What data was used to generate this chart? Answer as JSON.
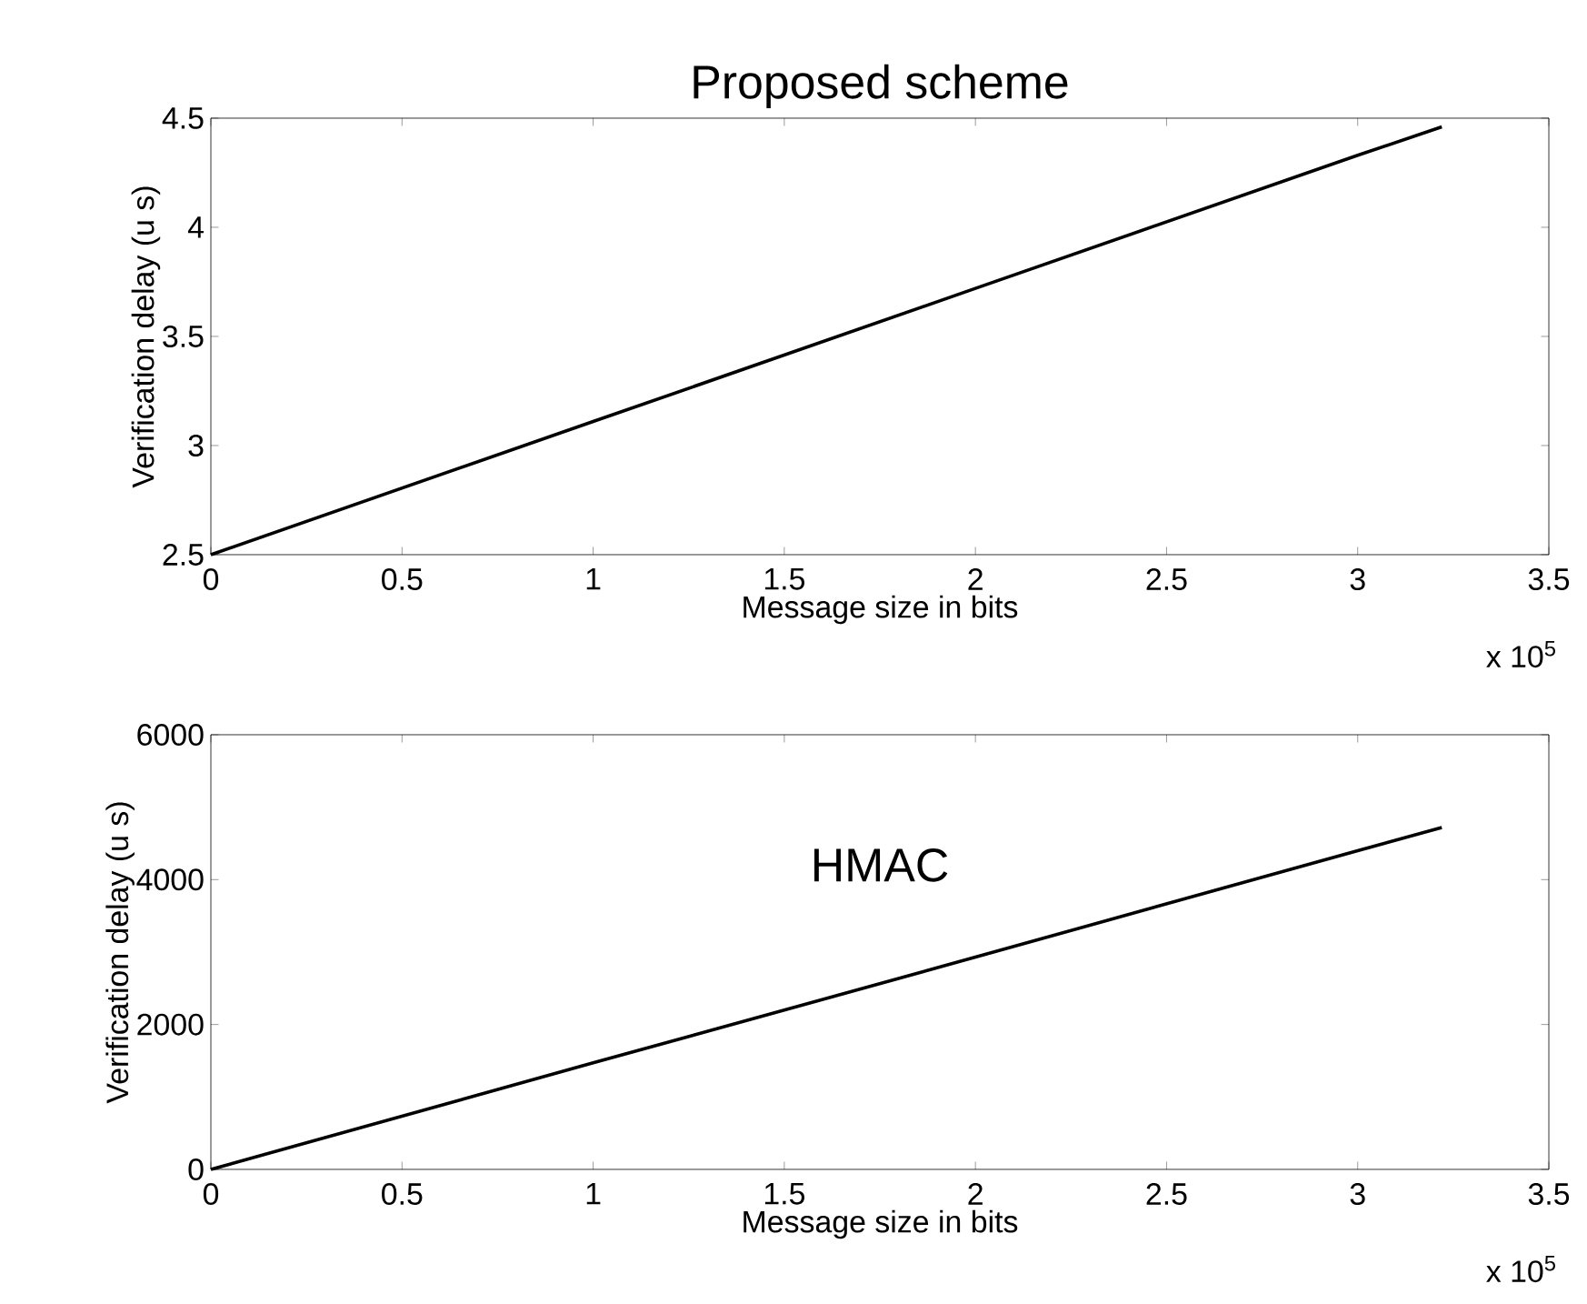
{
  "chart_data": [
    {
      "type": "line",
      "title": "Proposed scheme",
      "xlabel": "Message size in bits",
      "ylabel": "Verification delay (u s)",
      "x": [
        0,
        1,
        2,
        3,
        3.22
      ],
      "values": [
        2.5,
        3.11,
        3.72,
        4.33,
        4.46
      ],
      "color": "#000000",
      "xlim": [
        0,
        3.5
      ],
      "ylim": [
        2.5,
        4.5
      ],
      "xticks": [
        0,
        0.5,
        1,
        1.5,
        2,
        2.5,
        3,
        3.5
      ],
      "yticks": [
        2.5,
        3,
        3.5,
        4,
        4.5
      ],
      "annotations": [
        "x 10$^{5}$"
      ]
    },
    {
      "type": "line",
      "title": "HMAC",
      "xlabel": "Message size in bits",
      "ylabel": "Verification delay (u s)",
      "x": [
        0,
        1,
        2,
        3,
        3.22
      ],
      "values": [
        0,
        1470,
        2930,
        4400,
        4720
      ],
      "color": "#000000",
      "xlim": [
        0,
        3.5
      ],
      "ylim": [
        0,
        6000
      ],
      "xticks": [
        0,
        0.5,
        1,
        1.5,
        2,
        2.5,
        3,
        3.5
      ],
      "yticks": [
        0,
        2000,
        4000,
        6000
      ],
      "annotations": [
        "x 10$^{5}$"
      ]
    }
  ]
}
